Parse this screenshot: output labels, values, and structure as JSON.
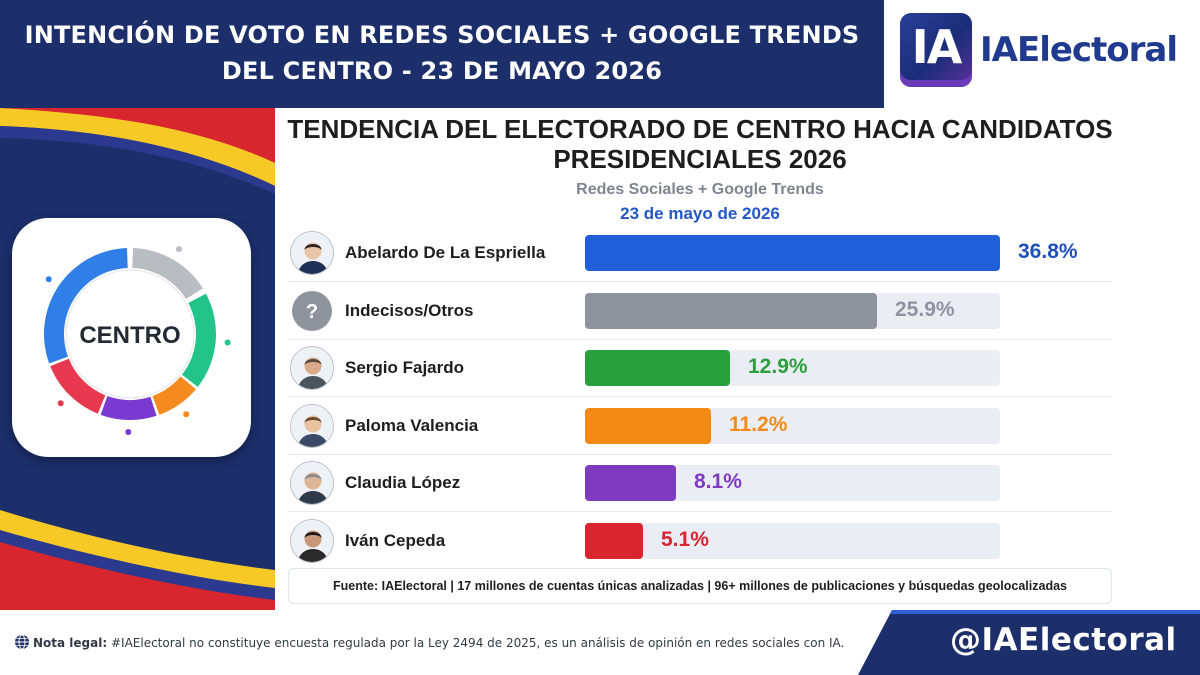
{
  "header": {
    "line1": "INTENCIÓN DE VOTO EN REDES SOCIALES + GOOGLE TRENDS",
    "line2": "DEL CENTRO - 23 DE MAYO 2026"
  },
  "logo": {
    "mark": "IA",
    "wordmark": "IAElectoral",
    "colors": {
      "mark": "#1f3a8f",
      "wordmark": "#1f3a8f"
    }
  },
  "centro_badge": {
    "label": "CENTRO",
    "segment_colors": [
      "#b9bcc3",
      "#22c48a",
      "#f58a1f",
      "#7a3ad1",
      "#e8384f",
      "#2f7fe6"
    ]
  },
  "chart_data": {
    "type": "bar",
    "orientation": "horizontal",
    "title": "TENDENCIA DEL ELECTORADO DE CENTRO HACIA CANDIDATOS PRESIDENCIALES 2026",
    "subtitle": "Redes Sociales + Google Trends",
    "date": "23 de mayo de 2026",
    "categories": [
      "Abelardo De La Espriella",
      "Indecisos/Otros",
      "Sergio Fajardo",
      "Paloma Valencia",
      "Claudia López",
      "Iván Cepeda"
    ],
    "values": [
      36.8,
      25.9,
      12.9,
      11.2,
      8.1,
      5.1
    ],
    "value_labels": [
      "36.8%",
      "25.9%",
      "12.9%",
      "11.2%",
      "8.1%",
      "5.1%"
    ],
    "colors": [
      "#1f5fd8",
      "#8e939d",
      "#2aa03c",
      "#f28a13",
      "#7e3bc0",
      "#d92530"
    ],
    "label_colors": [
      "#1f4fb8",
      "#8e939d",
      "#2aa03c",
      "#f28a13",
      "#7e3bc0",
      "#d92530"
    ],
    "xlim": [
      0,
      36.8
    ],
    "grid": false,
    "legend": "none"
  },
  "avatars": [
    {
      "icon": "candidate-portrait-icon",
      "glyph": ""
    },
    {
      "icon": "question-mark-icon",
      "glyph": "?"
    },
    {
      "icon": "candidate-portrait-icon",
      "glyph": ""
    },
    {
      "icon": "candidate-portrait-icon",
      "glyph": ""
    },
    {
      "icon": "candidate-portrait-icon",
      "glyph": ""
    },
    {
      "icon": "candidate-portrait-icon",
      "glyph": ""
    }
  ],
  "source_note": "Fuente: IAElectoral | 17 millones de cuentas únicas analizadas | 96+ millones de publicaciones y búsquedas geolocalizadas",
  "footer": {
    "legal_label": "Nota legal:",
    "legal_text": " #IAElectoral no constituye encuesta regulada por la Ley 2494 de 2025, es un análisis de opinión en redes sociales con IA.",
    "handle": "@IAElectoral"
  },
  "theme": {
    "navy": "#1c2f6b",
    "flag_yellow": "#f6c927",
    "flag_blue": "#2b3a8f",
    "flag_red": "#d7262e"
  }
}
